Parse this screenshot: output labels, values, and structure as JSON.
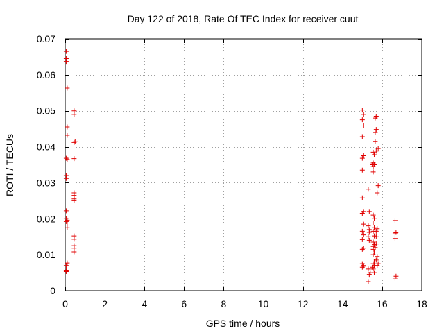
{
  "chart_data": {
    "type": "scatter",
    "title": "Day 122 of 2018, Rate Of TEC Index for receiver cuut",
    "xlabel": "GPS time / hours",
    "ylabel": "ROTI / TECUs",
    "xlim": [
      0,
      18
    ],
    "ylim": [
      0,
      0.07
    ],
    "x_ticks": [
      0,
      2,
      4,
      6,
      8,
      10,
      12,
      14,
      16,
      18
    ],
    "y_ticks": [
      0,
      0.01,
      0.02,
      0.03,
      0.04,
      0.05,
      0.06,
      0.07
    ],
    "x_tick_labels": [
      "0",
      "2",
      "4",
      "6",
      "8",
      "10",
      "12",
      "14",
      "16",
      "18"
    ],
    "y_tick_labels": [
      "0",
      "0.01",
      "0.02",
      "0.03",
      "0.04",
      "0.05",
      "0.06",
      "0.07"
    ],
    "grid": true,
    "marker": "+",
    "marker_color": "#e00000",
    "series": [
      {
        "name": "ROTI",
        "points": [
          [
            0.05,
            0.0665
          ],
          [
            0.05,
            0.0645
          ],
          [
            0.05,
            0.0637
          ],
          [
            0.1,
            0.0563
          ],
          [
            0.1,
            0.0455
          ],
          [
            0.1,
            0.0432
          ],
          [
            0.05,
            0.0368
          ],
          [
            0.1,
            0.0365
          ],
          [
            0.05,
            0.032
          ],
          [
            0.05,
            0.0312
          ],
          [
            0.05,
            0.0222
          ],
          [
            0.05,
            0.02
          ],
          [
            0.1,
            0.0196
          ],
          [
            0.05,
            0.0192
          ],
          [
            0.1,
            0.0188
          ],
          [
            0.1,
            0.0175
          ],
          [
            0.1,
            0.0077
          ],
          [
            0.05,
            0.007
          ],
          [
            0.05,
            0.0057
          ],
          [
            0.05,
            0.0053
          ],
          [
            0.45,
            0.05
          ],
          [
            0.45,
            0.049
          ],
          [
            0.5,
            0.0414
          ],
          [
            0.45,
            0.0412
          ],
          [
            0.45,
            0.0367
          ],
          [
            0.45,
            0.0272
          ],
          [
            0.45,
            0.0265
          ],
          [
            0.45,
            0.0255
          ],
          [
            0.45,
            0.025
          ],
          [
            0.45,
            0.0152
          ],
          [
            0.45,
            0.0143
          ],
          [
            0.45,
            0.0125
          ],
          [
            0.45,
            0.0118
          ],
          [
            0.45,
            0.0108
          ],
          [
            15.0,
            0.0502
          ],
          [
            15.05,
            0.049
          ],
          [
            15.0,
            0.0475
          ],
          [
            15.05,
            0.0458
          ],
          [
            15.0,
            0.0428
          ],
          [
            15.05,
            0.0375
          ],
          [
            15.0,
            0.0368
          ],
          [
            15.0,
            0.0335
          ],
          [
            15.0,
            0.0258
          ],
          [
            15.05,
            0.022
          ],
          [
            15.0,
            0.0215
          ],
          [
            15.05,
            0.0185
          ],
          [
            15.0,
            0.0165
          ],
          [
            15.05,
            0.0155
          ],
          [
            15.0,
            0.0142
          ],
          [
            15.05,
            0.0118
          ],
          [
            15.0,
            0.0115
          ],
          [
            15.0,
            0.0075
          ],
          [
            15.05,
            0.007
          ],
          [
            15.05,
            0.0068
          ],
          [
            15.0,
            0.0065
          ],
          [
            15.3,
            0.0282
          ],
          [
            15.35,
            0.022
          ],
          [
            15.3,
            0.018
          ],
          [
            15.35,
            0.017
          ],
          [
            15.35,
            0.0162
          ],
          [
            15.3,
            0.015
          ],
          [
            15.35,
            0.014
          ],
          [
            15.3,
            0.006
          ],
          [
            15.4,
            0.005
          ],
          [
            15.35,
            0.0045
          ],
          [
            15.3,
            0.0025
          ],
          [
            15.55,
            0.0385
          ],
          [
            15.6,
            0.0378
          ],
          [
            15.55,
            0.0355
          ],
          [
            15.5,
            0.035
          ],
          [
            15.55,
            0.0345
          ],
          [
            15.6,
            0.035
          ],
          [
            15.55,
            0.033
          ],
          [
            15.55,
            0.021
          ],
          [
            15.6,
            0.02
          ],
          [
            15.55,
            0.0188
          ],
          [
            15.6,
            0.0175
          ],
          [
            15.55,
            0.0165
          ],
          [
            15.6,
            0.0152
          ],
          [
            15.55,
            0.0135
          ],
          [
            15.6,
            0.0128
          ],
          [
            15.55,
            0.0123
          ],
          [
            15.65,
            0.012
          ],
          [
            15.55,
            0.0115
          ],
          [
            15.6,
            0.0105
          ],
          [
            15.55,
            0.01
          ],
          [
            15.6,
            0.008
          ],
          [
            15.55,
            0.0075
          ],
          [
            15.6,
            0.007
          ],
          [
            15.5,
            0.0065
          ],
          [
            15.55,
            0.006
          ],
          [
            15.6,
            0.005
          ],
          [
            15.7,
            0.0485
          ],
          [
            15.65,
            0.048
          ],
          [
            15.7,
            0.0448
          ],
          [
            15.65,
            0.044
          ],
          [
            15.65,
            0.0415
          ],
          [
            15.7,
            0.0388
          ],
          [
            15.8,
            0.0395
          ],
          [
            15.8,
            0.0292
          ],
          [
            15.75,
            0.0272
          ],
          [
            15.75,
            0.0172
          ],
          [
            15.7,
            0.0165
          ],
          [
            15.7,
            0.015
          ],
          [
            15.7,
            0.013
          ],
          [
            15.75,
            0.0095
          ],
          [
            15.7,
            0.0085
          ],
          [
            15.8,
            0.0075
          ],
          [
            15.75,
            0.007
          ],
          [
            16.65,
            0.0195
          ],
          [
            16.7,
            0.0162
          ],
          [
            16.65,
            0.016
          ],
          [
            16.65,
            0.0145
          ],
          [
            16.7,
            0.004
          ],
          [
            16.65,
            0.0035
          ]
        ]
      }
    ]
  }
}
